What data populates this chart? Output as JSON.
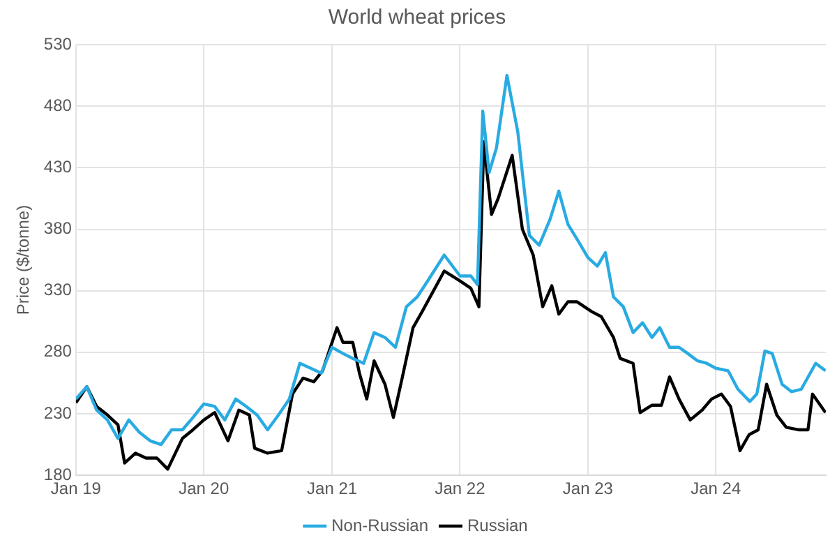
{
  "chart_data": {
    "type": "line",
    "title": "World wheat prices",
    "ylabel": "Price ($/tonne)",
    "xlim": [
      "2019-01-01",
      "2024-11-10"
    ],
    "xticks": [
      {
        "value": "2019-01-01",
        "label": "Jan 19"
      },
      {
        "value": "2020-01-01",
        "label": "Jan 20"
      },
      {
        "value": "2021-01-01",
        "label": "Jan 21"
      },
      {
        "value": "2022-01-01",
        "label": "Jan 22"
      },
      {
        "value": "2023-01-01",
        "label": "Jan 23"
      },
      {
        "value": "2024-01-01",
        "label": "Jan 24"
      }
    ],
    "ylim": [
      180,
      530
    ],
    "yticks": [
      180,
      230,
      280,
      330,
      380,
      430,
      480,
      530
    ],
    "grid": true,
    "legend": "bottom",
    "marker": "none",
    "line_style": "solid",
    "series": [
      {
        "name": "Non-Russian",
        "color": "#29abe2",
        "x": [
          "2019-01-01",
          "2019-02-01",
          "2019-03-01",
          "2019-04-01",
          "2019-05-01",
          "2019-06-01",
          "2019-07-01",
          "2019-08-01",
          "2019-09-01",
          "2019-10-01",
          "2019-11-01",
          "2019-12-01",
          "2020-01-01",
          "2020-02-01",
          "2020-03-01",
          "2020-04-01",
          "2020-05-01",
          "2020-06-01",
          "2020-07-01",
          "2020-08-01",
          "2020-09-01",
          "2020-10-01",
          "2020-11-01",
          "2020-12-01",
          "2021-01-01",
          "2021-02-01",
          "2021-03-01",
          "2021-04-01",
          "2021-05-01",
          "2021-06-01",
          "2021-07-01",
          "2021-08-01",
          "2021-09-01",
          "2021-10-01",
          "2021-11-17",
          "2022-01-01",
          "2022-02-01",
          "2022-02-20",
          "2022-03-07",
          "2022-03-25",
          "2022-04-15",
          "2022-05-15",
          "2022-06-15",
          "2022-07-18",
          "2022-08-15",
          "2022-09-15",
          "2022-10-10",
          "2022-11-05",
          "2022-12-03",
          "2023-01-01",
          "2023-01-28",
          "2023-02-20",
          "2023-03-15",
          "2023-04-12",
          "2023-05-10",
          "2023-06-06",
          "2023-07-03",
          "2023-07-25",
          "2023-08-22",
          "2023-09-18",
          "2023-10-13",
          "2023-11-10",
          "2023-12-06",
          "2024-01-01",
          "2024-02-05",
          "2024-03-04",
          "2024-04-07",
          "2024-04-27",
          "2024-05-20",
          "2024-06-10",
          "2024-07-08",
          "2024-08-04",
          "2024-09-01",
          "2024-10-12",
          "2024-11-09"
        ],
        "values": [
          242,
          252,
          233,
          225,
          210,
          225,
          215,
          208,
          205,
          217,
          217,
          227,
          238,
          236,
          225,
          242,
          236,
          229,
          217,
          229,
          242,
          271,
          267,
          263,
          284,
          279,
          275,
          271,
          296,
          292,
          284,
          317,
          325,
          338,
          359,
          342,
          342,
          335,
          476,
          426,
          446,
          505,
          459,
          375,
          367,
          388,
          411,
          384,
          371,
          357,
          350,
          361,
          325,
          317,
          296,
          304,
          292,
          300,
          284,
          284,
          279,
          273,
          271,
          267,
          265,
          250,
          240,
          246,
          281,
          279,
          254,
          248,
          250,
          271,
          265
        ]
      },
      {
        "name": "Russian",
        "color": "#000000",
        "x": [
          "2019-01-01",
          "2019-02-01",
          "2019-03-01",
          "2019-04-01",
          "2019-05-01",
          "2019-05-20",
          "2019-06-20",
          "2019-07-20",
          "2019-08-20",
          "2019-09-20",
          "2019-11-01",
          "2019-12-01",
          "2020-01-01",
          "2020-02-01",
          "2020-03-10",
          "2020-04-10",
          "2020-05-10",
          "2020-05-25",
          "2020-07-01",
          "2020-08-10",
          "2020-09-10",
          "2020-10-10",
          "2020-11-10",
          "2020-12-05",
          "2021-01-15",
          "2021-02-01",
          "2021-03-01",
          "2021-03-20",
          "2021-04-10",
          "2021-05-01",
          "2021-06-01",
          "2021-06-25",
          "2021-07-20",
          "2021-08-20",
          "2021-09-15",
          "2021-11-17",
          "2022-01-01",
          "2022-02-01",
          "2022-02-24",
          "2022-03-10",
          "2022-04-01",
          "2022-04-20",
          "2022-05-30",
          "2022-06-28",
          "2022-07-29",
          "2022-08-25",
          "2022-09-20",
          "2022-10-10",
          "2022-11-05",
          "2022-12-01",
          "2023-01-12",
          "2023-02-08",
          "2023-03-15",
          "2023-04-03",
          "2023-05-10",
          "2023-05-30",
          "2023-07-03",
          "2023-07-30",
          "2023-08-22",
          "2023-09-18",
          "2023-10-20",
          "2023-11-23",
          "2023-12-20",
          "2024-01-17",
          "2024-02-12",
          "2024-03-10",
          "2024-04-05",
          "2024-05-01",
          "2024-05-25",
          "2024-06-23",
          "2024-07-20",
          "2024-08-23",
          "2024-09-20",
          "2024-10-03",
          "2024-11-09"
        ],
        "values": [
          239,
          252,
          236,
          229,
          221,
          190,
          198,
          194,
          194,
          185,
          210,
          217,
          225,
          231,
          208,
          233,
          229,
          202,
          198,
          200,
          246,
          259,
          256,
          265,
          300,
          288,
          288,
          263,
          242,
          273,
          254,
          227,
          259,
          300,
          313,
          346,
          338,
          332,
          317,
          451,
          392,
          405,
          440,
          380,
          359,
          317,
          334,
          311,
          321,
          321,
          313,
          309,
          292,
          275,
          271,
          231,
          237,
          237,
          260,
          242,
          225,
          233,
          242,
          246,
          236,
          200,
          213,
          217,
          254,
          229,
          219,
          217,
          217,
          246,
          231
        ]
      }
    ]
  }
}
